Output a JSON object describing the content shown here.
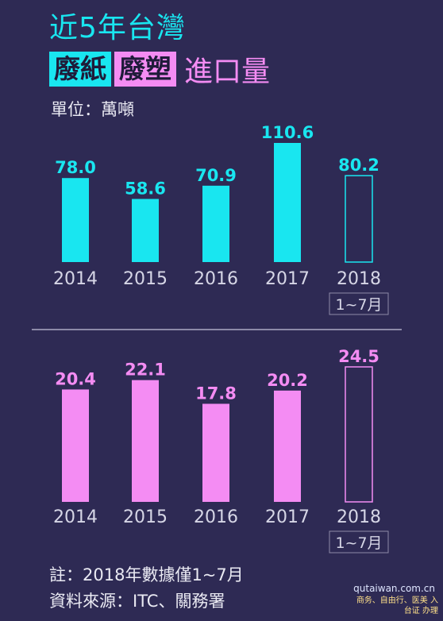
{
  "header": {
    "title_line1": "近5年台灣",
    "highlight_paper": "廢紙",
    "highlight_plastic": "廢塑",
    "title_suffix": "進口量",
    "unit": "單位：萬噸"
  },
  "colors": {
    "cyan": "#19e6f0",
    "pink": "#f48cf3",
    "background": "#2e2a54"
  },
  "chart_data": [
    {
      "type": "bar",
      "categories": [
        "2014",
        "2015",
        "2016",
        "2017",
        "2018"
      ],
      "values": [
        78.0,
        58.6,
        70.9,
        110.6,
        80.2
      ],
      "value_labels": [
        "78.0",
        "58.6",
        "70.9",
        "110.6",
        "80.2"
      ],
      "partial_note": "1~7月",
      "color": "#19e6f0",
      "outlined_last": true
    },
    {
      "type": "bar",
      "categories": [
        "2014",
        "2015",
        "2016",
        "2017",
        "2018"
      ],
      "values": [
        20.4,
        22.1,
        17.8,
        20.2,
        24.5
      ],
      "value_labels": [
        "20.4",
        "22.1",
        "17.8",
        "20.2",
        "24.5"
      ],
      "partial_note": "1~7月",
      "color": "#f48cf3",
      "outlined_last": true
    }
  ],
  "footer": {
    "note": "註：2018年數據僅1~7月",
    "source": "資料來源：ITC、關務署",
    "watermark_url": "qutaiwan.com.cn",
    "watermark_tagline": "商务、自由行、医美 入台证 办理"
  }
}
